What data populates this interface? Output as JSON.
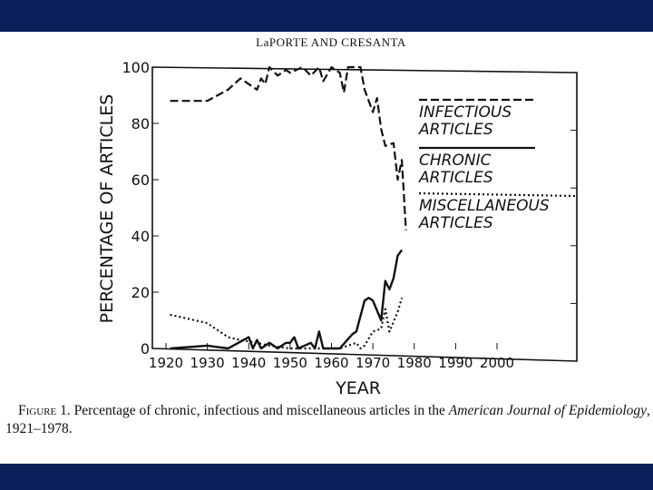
{
  "header": "LaPORTE AND CRESANTA",
  "caption": {
    "figure_label": "Figure 1.",
    "text": "Percentage of chronic, infectious and miscellaneous articles in the ",
    "journal": "American Journal of Epidemiology",
    "tail": ", 1921–1978."
  },
  "colors": {
    "band": "#0b1f5a",
    "ink": "#111111"
  },
  "chart_data": {
    "type": "line",
    "title": "",
    "xlabel": "YEAR",
    "ylabel": "PERCENTAGE OF ARTICLES",
    "xlim": [
      1920,
      2020
    ],
    "ylim": [
      0,
      100
    ],
    "xticks": [
      "1920",
      "1930",
      "1940",
      "1950",
      "1960",
      "1970",
      "1980",
      "1990",
      "2000"
    ],
    "yticks": [
      "0",
      "20",
      "40",
      "60",
      "80",
      "100"
    ],
    "grid": false,
    "legend_placement": "right",
    "series": [
      {
        "name": "INFECTIOUS ARTICLES",
        "style": "dashed",
        "x": [
          1921,
          1930,
          1935,
          1938,
          1942,
          1943,
          1944,
          1945,
          1947,
          1949,
          1950,
          1953,
          1955,
          1957,
          1958,
          1960,
          1962,
          1963,
          1964,
          1967,
          1968,
          1970,
          1971,
          1972,
          1973,
          1975,
          1976,
          1977,
          1978
        ],
        "y": [
          88,
          88,
          92,
          96,
          92,
          96,
          94,
          100,
          97,
          99,
          98,
          100,
          97,
          100,
          95,
          100,
          98,
          91,
          100,
          100,
          92,
          84,
          89,
          78,
          72,
          73,
          60,
          67,
          42
        ]
      },
      {
        "name": "CHRONIC ARTICLES",
        "style": "solid",
        "x": [
          1921,
          1930,
          1935,
          1940,
          1941,
          1942,
          1943,
          1945,
          1947,
          1949,
          1950,
          1951,
          1952,
          1955,
          1956,
          1957,
          1958,
          1962,
          1965,
          1966,
          1968,
          1969,
          1970,
          1972,
          1973,
          1974,
          1975,
          1976,
          1977
        ],
        "y": [
          0,
          1,
          0,
          4,
          0,
          3,
          0,
          2,
          0,
          2,
          2,
          4,
          0,
          2,
          0,
          6,
          0,
          0,
          5,
          6,
          17,
          18,
          17,
          10,
          24,
          21,
          25,
          33,
          35
        ]
      },
      {
        "name": "MISCELLANEOUS ARTICLES",
        "style": "dotted",
        "x": [
          1921,
          1930,
          1935,
          1938,
          1942,
          1945,
          1950,
          1955,
          1962,
          1966,
          1967,
          1968,
          1970,
          1972,
          1973,
          1974,
          1976,
          1977
        ],
        "y": [
          12,
          9,
          4,
          3,
          2,
          1,
          0,
          0,
          0,
          2,
          0,
          1,
          6,
          7,
          14,
          6,
          13,
          18
        ]
      }
    ]
  }
}
